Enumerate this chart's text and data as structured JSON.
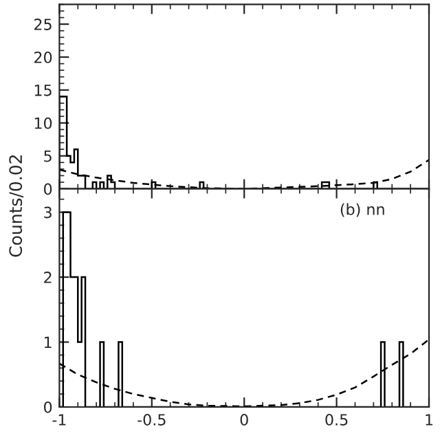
{
  "chart_data": [
    {
      "type": "histogram",
      "ylabel": "Counts/0.02",
      "xlim": [
        -1,
        1
      ],
      "xticks": [
        -1,
        -0.5,
        0,
        0.5,
        1
      ],
      "ylim": [
        0,
        28
      ],
      "yticks": [
        0,
        5,
        10,
        15,
        20,
        25
      ],
      "tick_labels": "y",
      "grid": false,
      "legend": false,
      "series": [
        {
          "color": "#000000",
          "bins": [
            -1.0,
            -0.98,
            -0.96,
            -0.94,
            -0.92,
            -0.9,
            -0.88,
            -0.86,
            -0.84,
            -0.82,
            -0.8,
            -0.78,
            -0.76,
            -0.74,
            -0.72,
            -0.7,
            -0.68,
            -0.66,
            -0.64,
            -0.62,
            -0.6,
            -0.58,
            -0.56,
            -0.54,
            -0.52,
            -0.5,
            -0.48,
            -0.46,
            -0.44,
            -0.42,
            -0.4,
            -0.38,
            -0.36,
            -0.34,
            -0.32,
            -0.3,
            -0.28,
            -0.26,
            -0.24,
            -0.22,
            -0.2,
            -0.18,
            -0.16,
            -0.14,
            -0.12,
            -0.1,
            -0.08,
            -0.06,
            -0.04,
            -0.02,
            0.0,
            0.02,
            0.04,
            0.06,
            0.08,
            0.1,
            0.12,
            0.14,
            0.16,
            0.18,
            0.2,
            0.22,
            0.24,
            0.26,
            0.28,
            0.3,
            0.32,
            0.34,
            0.36,
            0.38,
            0.4,
            0.42,
            0.44,
            0.46,
            0.48,
            0.5,
            0.52,
            0.54,
            0.56,
            0.58,
            0.6,
            0.62,
            0.64,
            0.66,
            0.68,
            0.7,
            0.72,
            0.74,
            0.76,
            0.78,
            0.8,
            0.82,
            0.84,
            0.86,
            0.88,
            0.9,
            0.92,
            0.94,
            0.96,
            0.98,
            1.0
          ],
          "values": [
            14,
            14,
            5,
            4,
            6,
            2,
            2,
            0,
            0,
            1,
            0,
            1,
            0,
            2,
            1,
            0,
            0,
            0,
            0,
            0,
            0,
            0,
            0,
            0,
            0,
            1,
            0,
            0,
            0,
            0,
            0,
            0,
            0,
            0,
            0,
            0,
            0,
            0,
            1,
            0,
            0,
            0,
            0,
            0,
            0,
            0,
            0,
            0,
            0,
            0,
            0,
            0,
            0,
            0,
            0,
            0,
            0,
            0,
            0,
            0,
            0,
            0,
            0,
            0,
            0,
            0,
            0,
            0,
            0,
            0,
            0,
            1,
            1,
            0,
            0,
            0,
            0,
            0,
            0,
            0,
            0,
            0,
            0,
            0,
            0,
            1,
            0,
            0,
            0,
            0,
            0,
            0,
            0,
            0,
            0,
            0,
            0,
            0,
            0,
            0
          ]
        },
        {
          "type": "line",
          "color": "#000000",
          "line_style": "dashed",
          "x": [
            -1,
            -0.9,
            -0.8,
            -0.6,
            -0.4,
            -0.2,
            0,
            0.2,
            0.4,
            0.6,
            0.7,
            0.8,
            0.9,
            1
          ],
          "values": [
            2.9,
            2.2,
            1.7,
            0.9,
            0.4,
            0.1,
            0.0,
            0.2,
            0.4,
            0.7,
            0.9,
            1.5,
            2.6,
            4.4
          ]
        }
      ]
    },
    {
      "type": "histogram",
      "annotations": [
        "(b) nn"
      ],
      "xlim": [
        -1,
        1
      ],
      "xticks": [
        -1,
        -0.5,
        0,
        0.5,
        1
      ],
      "ylim": [
        0,
        3.36
      ],
      "yticks": [
        0,
        1,
        2,
        3
      ],
      "grid": false,
      "legend": false,
      "series": [
        {
          "color": "#000000",
          "bins": [
            -1.0,
            -0.98,
            -0.96,
            -0.94,
            -0.92,
            -0.9,
            -0.88,
            -0.86,
            -0.84,
            -0.82,
            -0.8,
            -0.78,
            -0.76,
            -0.74,
            -0.72,
            -0.7,
            -0.68,
            -0.66,
            -0.64,
            -0.62,
            -0.6,
            -0.58,
            -0.56,
            -0.54,
            -0.52,
            -0.5,
            -0.48,
            -0.46,
            -0.44,
            -0.42,
            -0.4,
            -0.38,
            -0.36,
            -0.34,
            -0.32,
            -0.3,
            -0.28,
            -0.26,
            -0.24,
            -0.22,
            -0.2,
            -0.18,
            -0.16,
            -0.14,
            -0.12,
            -0.1,
            -0.08,
            -0.06,
            -0.04,
            -0.02,
            0.0,
            0.02,
            0.04,
            0.06,
            0.08,
            0.1,
            0.12,
            0.14,
            0.16,
            0.18,
            0.2,
            0.22,
            0.24,
            0.26,
            0.28,
            0.3,
            0.32,
            0.34,
            0.36,
            0.38,
            0.4,
            0.42,
            0.44,
            0.46,
            0.48,
            0.5,
            0.52,
            0.54,
            0.56,
            0.58,
            0.6,
            0.62,
            0.64,
            0.66,
            0.68,
            0.7,
            0.72,
            0.74,
            0.76,
            0.78,
            0.8,
            0.82,
            0.84,
            0.86,
            0.88,
            0.9,
            0.92,
            0.94,
            0.96,
            0.98,
            1.0
          ],
          "values": [
            0,
            3,
            3,
            2,
            2,
            1,
            2,
            0,
            0,
            0,
            0,
            1,
            0,
            0,
            0,
            0,
            1,
            0,
            0,
            0,
            0,
            0,
            0,
            0,
            0,
            0,
            0,
            0,
            0,
            0,
            0,
            0,
            0,
            0,
            0,
            0,
            0,
            0,
            0,
            0,
            0,
            0,
            0,
            0,
            0,
            0,
            0,
            0,
            0,
            0,
            0,
            0,
            0,
            0,
            0,
            0,
            0,
            0,
            0,
            0,
            0,
            0,
            0,
            0,
            0,
            0,
            0,
            0,
            0,
            0,
            0,
            0,
            0,
            0,
            0,
            0,
            0,
            0,
            0,
            0,
            0,
            0,
            0,
            0,
            0,
            0,
            0,
            1,
            0,
            0,
            0,
            0,
            1,
            0,
            0,
            0,
            0,
            0,
            0,
            0
          ]
        },
        {
          "type": "line",
          "color": "#000000",
          "line_style": "dashed",
          "x": [
            -1,
            -0.9,
            -0.8,
            -0.7,
            -0.6,
            -0.5,
            -0.4,
            -0.3,
            -0.2,
            0,
            0.2,
            0.3,
            0.4,
            0.5,
            0.6,
            0.7,
            0.8,
            0.9,
            1
          ],
          "values": [
            0.67,
            0.5,
            0.38,
            0.28,
            0.2,
            0.14,
            0.08,
            0.04,
            0.02,
            0.01,
            0.03,
            0.06,
            0.11,
            0.19,
            0.3,
            0.47,
            0.65,
            0.82,
            1.04
          ]
        }
      ]
    }
  ]
}
